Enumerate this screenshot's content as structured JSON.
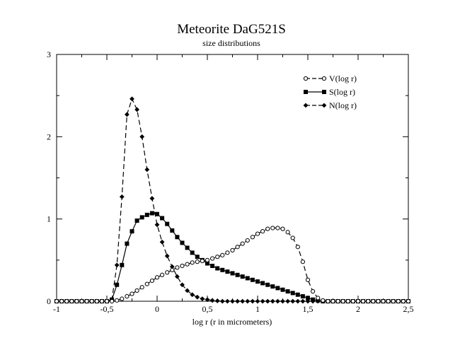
{
  "chart_data": {
    "type": "line",
    "title": "Meteorite DaG521S",
    "subtitle": "size distributions",
    "xlabel": "log r (r in micrometers)",
    "ylabel": "",
    "xlim": [
      -1,
      2.5
    ],
    "ylim": [
      0,
      3
    ],
    "x_ticks": [
      {
        "value": -1,
        "label": "-1"
      },
      {
        "value": -0.5,
        "label": "-0,5"
      },
      {
        "value": 0,
        "label": "0"
      },
      {
        "value": 0.5,
        "label": "0,5"
      },
      {
        "value": 1,
        "label": "1"
      },
      {
        "value": 1.5,
        "label": "1,5"
      },
      {
        "value": 2,
        "label": "2"
      },
      {
        "value": 2.5,
        "label": "2,5"
      }
    ],
    "y_ticks": [
      {
        "value": 0,
        "label": "0"
      },
      {
        "value": 1,
        "label": "1"
      },
      {
        "value": 2,
        "label": "2"
      },
      {
        "value": 3,
        "label": "3"
      }
    ],
    "grid": false,
    "legend_position": "top-right",
    "x": [
      -1.0,
      -0.95,
      -0.9,
      -0.85,
      -0.8,
      -0.75,
      -0.7,
      -0.65,
      -0.6,
      -0.55,
      -0.5,
      -0.45,
      -0.4,
      -0.35,
      -0.3,
      -0.25,
      -0.2,
      -0.15,
      -0.1,
      -0.05,
      0.0,
      0.05,
      0.1,
      0.15,
      0.2,
      0.25,
      0.3,
      0.35,
      0.4,
      0.45,
      0.5,
      0.55,
      0.6,
      0.65,
      0.7,
      0.75,
      0.8,
      0.85,
      0.9,
      0.95,
      1.0,
      1.05,
      1.1,
      1.15,
      1.2,
      1.25,
      1.3,
      1.35,
      1.4,
      1.45,
      1.5,
      1.55,
      1.6,
      1.65,
      1.7,
      1.75,
      1.8,
      1.85,
      1.9,
      1.95,
      2.0,
      2.05,
      2.1,
      2.15,
      2.2,
      2.25,
      2.3,
      2.35,
      2.4,
      2.45,
      2.5
    ],
    "series": [
      {
        "name": "V(log r)",
        "line_style": "dashed",
        "marker": "open-circle",
        "values": [
          0,
          0,
          0,
          0,
          0,
          0,
          0,
          0,
          0,
          0,
          0,
          0,
          0.01,
          0.03,
          0.06,
          0.09,
          0.13,
          0.17,
          0.21,
          0.25,
          0.29,
          0.32,
          0.35,
          0.38,
          0.41,
          0.43,
          0.45,
          0.47,
          0.48,
          0.49,
          0.5,
          0.52,
          0.54,
          0.56,
          0.59,
          0.62,
          0.66,
          0.7,
          0.74,
          0.78,
          0.82,
          0.85,
          0.88,
          0.89,
          0.89,
          0.88,
          0.84,
          0.77,
          0.66,
          0.48,
          0.26,
          0.12,
          0.04,
          0.01,
          0,
          0,
          0,
          0,
          0,
          0,
          0,
          0,
          0,
          0,
          0,
          0,
          0,
          0,
          0,
          0,
          0
        ]
      },
      {
        "name": "S(log r)",
        "line_style": "solid",
        "marker": "filled-square",
        "values": [
          0,
          0,
          0,
          0,
          0,
          0,
          0,
          0,
          0,
          0,
          0,
          0.02,
          0.2,
          0.44,
          0.7,
          0.85,
          0.98,
          1.02,
          1.05,
          1.07,
          1.06,
          1.01,
          0.94,
          0.86,
          0.78,
          0.71,
          0.65,
          0.59,
          0.54,
          0.5,
          0.46,
          0.43,
          0.4,
          0.38,
          0.36,
          0.34,
          0.32,
          0.3,
          0.28,
          0.26,
          0.24,
          0.22,
          0.2,
          0.18,
          0.16,
          0.14,
          0.12,
          0.1,
          0.08,
          0.06,
          0.04,
          0.02,
          0.01,
          0,
          0,
          0,
          0,
          0,
          0,
          0,
          0,
          0,
          0,
          0,
          0,
          0,
          0,
          0,
          0,
          0,
          0
        ]
      },
      {
        "name": "N(log r)",
        "line_style": "dashed",
        "marker": "filled-diamond",
        "values": [
          0,
          0,
          0,
          0,
          0,
          0,
          0,
          0,
          0,
          0,
          0,
          0.02,
          0.44,
          1.27,
          2.27,
          2.46,
          2.33,
          2.0,
          1.6,
          1.25,
          0.93,
          0.72,
          0.55,
          0.42,
          0.3,
          0.2,
          0.13,
          0.08,
          0.05,
          0.03,
          0.02,
          0.01,
          0.005,
          0,
          0,
          0,
          0,
          0,
          0,
          0,
          0,
          0,
          0,
          0,
          0,
          0,
          0,
          0,
          0,
          0,
          0,
          0,
          0,
          0,
          0,
          0,
          0,
          0,
          0,
          0,
          0,
          0,
          0,
          0,
          0,
          0,
          0,
          0,
          0,
          0,
          0
        ]
      }
    ]
  }
}
